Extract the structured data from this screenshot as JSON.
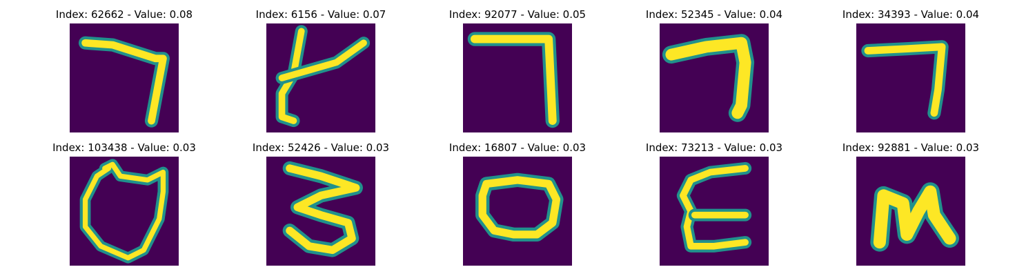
{
  "colors": {
    "background": "#440154",
    "stroke_core": "#fde725",
    "stroke_edge": "#21918c"
  },
  "panels": [
    {
      "title": "Index: 62662 - Value: 0.08",
      "glyph": "seven-bent"
    },
    {
      "title": "Index: 6156 - Value: 0.07",
      "glyph": "four-like"
    },
    {
      "title": "Index: 92077 - Value: 0.05",
      "glyph": "seven-square"
    },
    {
      "title": "Index: 52345 - Value: 0.04",
      "glyph": "seven-thick"
    },
    {
      "title": "Index: 34393 - Value: 0.04",
      "glyph": "seven-thin"
    },
    {
      "title": "Index: 103438 - Value: 0.03",
      "glyph": "zero-shield"
    },
    {
      "title": "Index: 52426 - Value: 0.03",
      "glyph": "three"
    },
    {
      "title": "Index: 16807 - Value: 0.03",
      "glyph": "zero-round"
    },
    {
      "title": "Index: 73213 - Value: 0.03",
      "glyph": "epsilon"
    },
    {
      "title": "Index: 92881 - Value: 0.03",
      "glyph": "n-shape"
    }
  ]
}
